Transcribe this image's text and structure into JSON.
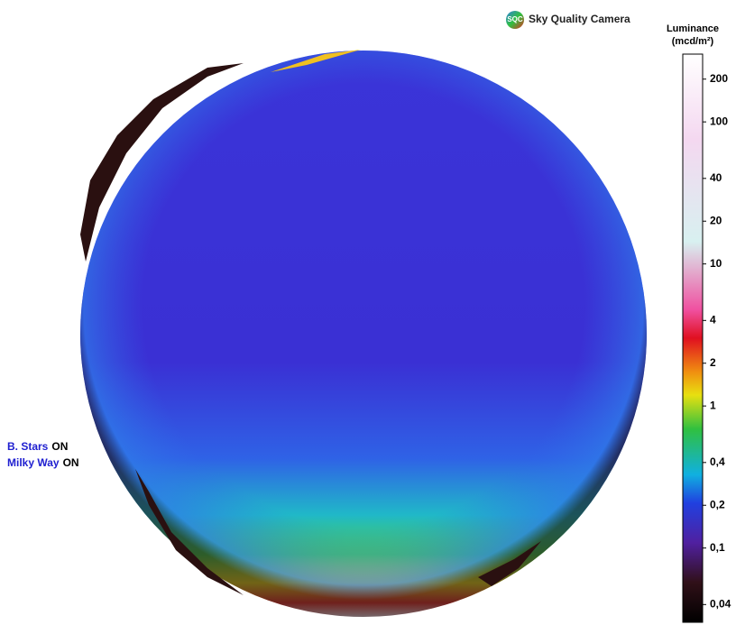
{
  "header": {
    "logo": "SQC",
    "title": "Sky Quality Camera"
  },
  "colorbar": {
    "title": "Luminance",
    "unit": "(mcd/m²)",
    "log_scale": true,
    "lim": [
      0.03,
      300
    ],
    "ticks": [
      200,
      100,
      40,
      20,
      10,
      4,
      2,
      1,
      {
        "value": 0.4,
        "label": "0,4"
      },
      {
        "value": 0.2,
        "label": "0,2"
      },
      {
        "value": 0.1,
        "label": "0,1"
      },
      {
        "value": 0.04,
        "label": "0,04"
      }
    ]
  },
  "status": [
    {
      "label": "B. Stars",
      "state": "ON"
    },
    {
      "label": "Milky Way",
      "state": "ON"
    }
  ]
}
